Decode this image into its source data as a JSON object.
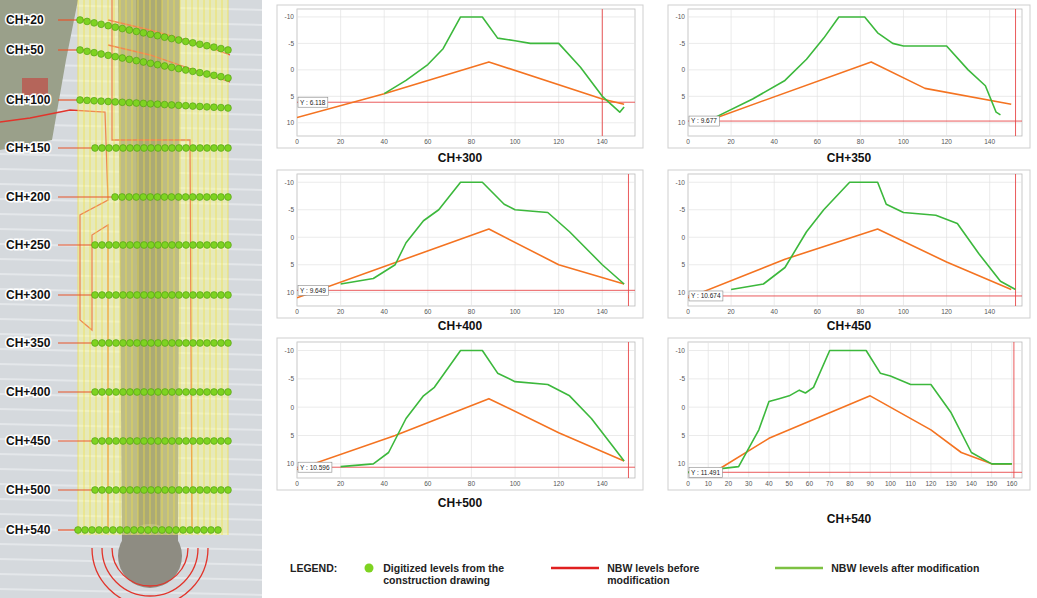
{
  "map": {
    "labels": [
      "CH+20",
      "CH+50",
      "CH+100",
      "CH+150",
      "CH+200",
      "CH+250",
      "CH+300",
      "CH+350",
      "CH+400",
      "CH+450",
      "CH+500",
      "CH+540"
    ]
  },
  "chart_data": [
    {
      "type": "line",
      "title": "CH+300",
      "grid": true,
      "xlim": [
        0,
        155
      ],
      "ylim": [
        12.5,
        -11.5
      ],
      "xticks": [
        0,
        20,
        40,
        60,
        80,
        100,
        120,
        140
      ],
      "yticks": [
        -10,
        -5,
        0,
        5,
        10
      ],
      "series": [
        {
          "color": "#f47321",
          "x": [
            0,
            40,
            88,
            140,
            150
          ],
          "values": [
            9,
            4.5,
            -1.5,
            5.5,
            6.5
          ]
        },
        {
          "color": "#3cb83c",
          "x": [
            40,
            50,
            60,
            67,
            75,
            85,
            92,
            100,
            107,
            120,
            130,
            140,
            148,
            150
          ],
          "values": [
            4.5,
            2,
            -1,
            -4,
            -10,
            -10,
            -6,
            -5.5,
            -5,
            -5,
            -0.5,
            5,
            8,
            7
          ]
        }
      ],
      "annotations": [
        {
          "x": 140,
          "y": 6.118,
          "label": "Y : 6.118"
        }
      ]
    },
    {
      "type": "line",
      "title": "CH+350",
      "grid": true,
      "xlim": [
        0,
        155
      ],
      "ylim": [
        12.5,
        -11.5
      ],
      "xticks": [
        0,
        20,
        40,
        60,
        80,
        100,
        120,
        140
      ],
      "yticks": [
        -10,
        -5,
        0,
        5,
        10
      ],
      "series": [
        {
          "color": "#f47321",
          "x": [
            10,
            85,
            110,
            150
          ],
          "values": [
            9.5,
            -1.5,
            3.5,
            6.5
          ]
        },
        {
          "color": "#3cb83c",
          "x": [
            10,
            30,
            45,
            55,
            63,
            70,
            82,
            88,
            95,
            100,
            120,
            130,
            138,
            143,
            145
          ],
          "values": [
            9.5,
            5.5,
            2,
            -2,
            -6,
            -10,
            -10,
            -7,
            -5,
            -4.5,
            -4.5,
            0,
            3,
            8,
            8.5
          ]
        }
      ],
      "annotations": [
        {
          "x": 152,
          "y": 9.677,
          "label": "Y : 9.677"
        }
      ]
    },
    {
      "type": "line",
      "title": "CH+400",
      "grid": true,
      "xlim": [
        0,
        155
      ],
      "ylim": [
        12.5,
        -11.5
      ],
      "xticks": [
        0,
        20,
        40,
        60,
        80,
        100,
        120,
        140
      ],
      "yticks": [
        -10,
        -5,
        0,
        5,
        10
      ],
      "series": [
        {
          "color": "#f47321",
          "x": [
            0,
            88,
            120,
            150
          ],
          "values": [
            11,
            -1.5,
            5,
            8.5
          ]
        },
        {
          "color": "#3cb83c",
          "x": [
            20,
            35,
            45,
            50,
            58,
            65,
            75,
            85,
            95,
            100,
            115,
            125,
            135,
            140,
            150
          ],
          "values": [
            8.5,
            7.5,
            5,
            1,
            -3,
            -5,
            -10,
            -10,
            -6,
            -5,
            -4.5,
            -1,
            3,
            5,
            8.5
          ]
        }
      ],
      "annotations": [
        {
          "x": 152,
          "y": 9.649,
          "label": "Y : 9.649"
        }
      ]
    },
    {
      "type": "line",
      "title": "CH+450",
      "grid": true,
      "xlim": [
        0,
        155
      ],
      "ylim": [
        12.5,
        -11.5
      ],
      "xticks": [
        0,
        20,
        40,
        60,
        80,
        100,
        120,
        140
      ],
      "yticks": [
        -10,
        -5,
        0,
        5,
        10
      ],
      "series": [
        {
          "color": "#f47321",
          "x": [
            0,
            45,
            88,
            120,
            150
          ],
          "values": [
            11,
            4,
            -1.5,
            4.5,
            9.5
          ]
        },
        {
          "color": "#3cb83c",
          "x": [
            20,
            35,
            45,
            55,
            63,
            75,
            88,
            92,
            100,
            115,
            125,
            135,
            145,
            152
          ],
          "values": [
            9.5,
            8.5,
            5.5,
            -1,
            -5,
            -10,
            -10,
            -6,
            -4.5,
            -4,
            -2.5,
            3,
            8,
            9.5
          ]
        }
      ],
      "annotations": [
        {
          "x": 152,
          "y": 10.674,
          "label": "Y : 10.674"
        }
      ]
    },
    {
      "type": "line",
      "title": "CH+500",
      "grid": true,
      "xlim": [
        0,
        155
      ],
      "ylim": [
        12.5,
        -11.5
      ],
      "xticks": [
        0,
        20,
        40,
        60,
        80,
        100,
        120,
        140
      ],
      "yticks": [
        -10,
        -5,
        0,
        5,
        10
      ],
      "series": [
        {
          "color": "#f47321",
          "x": [
            0,
            45,
            88,
            120,
            150
          ],
          "values": [
            11,
            5,
            -1.5,
            4.5,
            9.5
          ]
        },
        {
          "color": "#3cb83c",
          "x": [
            20,
            35,
            42,
            50,
            58,
            63,
            75,
            85,
            92,
            100,
            115,
            125,
            135,
            145,
            150
          ],
          "values": [
            10.5,
            10,
            8,
            2,
            -2,
            -3.5,
            -10,
            -10,
            -6,
            -4.5,
            -4,
            -2,
            2,
            7,
            9.5
          ]
        }
      ],
      "annotations": [
        {
          "x": 152,
          "y": 10.596,
          "label": "Y : 10.596"
        }
      ]
    },
    {
      "type": "line",
      "title": "CH+540",
      "grid": true,
      "xlim": [
        0,
        165
      ],
      "ylim": [
        12.5,
        -11.5
      ],
      "xticks": [
        0,
        10,
        20,
        30,
        40,
        50,
        60,
        70,
        80,
        90,
        100,
        110,
        120,
        130,
        140,
        150,
        160
      ],
      "yticks": [
        -10,
        -5,
        0,
        5,
        10
      ],
      "series": [
        {
          "color": "#f47321",
          "x": [
            0,
            15,
            40,
            90,
            120,
            135,
            150,
            160
          ],
          "values": [
            11.5,
            11,
            5.5,
            -2,
            4,
            8,
            10,
            10
          ]
        },
        {
          "color": "#3cb83c",
          "x": [
            0,
            25,
            35,
            40,
            45,
            50,
            55,
            58,
            62,
            70,
            88,
            95,
            100,
            110,
            120,
            130,
            140,
            150,
            160
          ],
          "values": [
            11.5,
            10.5,
            4,
            -1,
            -1.5,
            -2,
            -3,
            -2.5,
            -3.5,
            -10,
            -10,
            -6,
            -5.5,
            -4,
            -4,
            1,
            8,
            10,
            10
          ]
        }
      ],
      "annotations": [
        {
          "x": 161,
          "y": 11.491,
          "label": "Y : 11.491"
        }
      ]
    }
  ],
  "legend": {
    "title": "LEGEND:",
    "items": [
      {
        "label": "Digitized levels from the construction drawing",
        "color": "#7ed321",
        "marker": "circle"
      },
      {
        "label": "NBW levels before modification",
        "color": "#e02020",
        "line_style": "solid"
      },
      {
        "label": "NBW levels after modification",
        "color": "#7dc142",
        "line_style": "solid"
      }
    ]
  }
}
